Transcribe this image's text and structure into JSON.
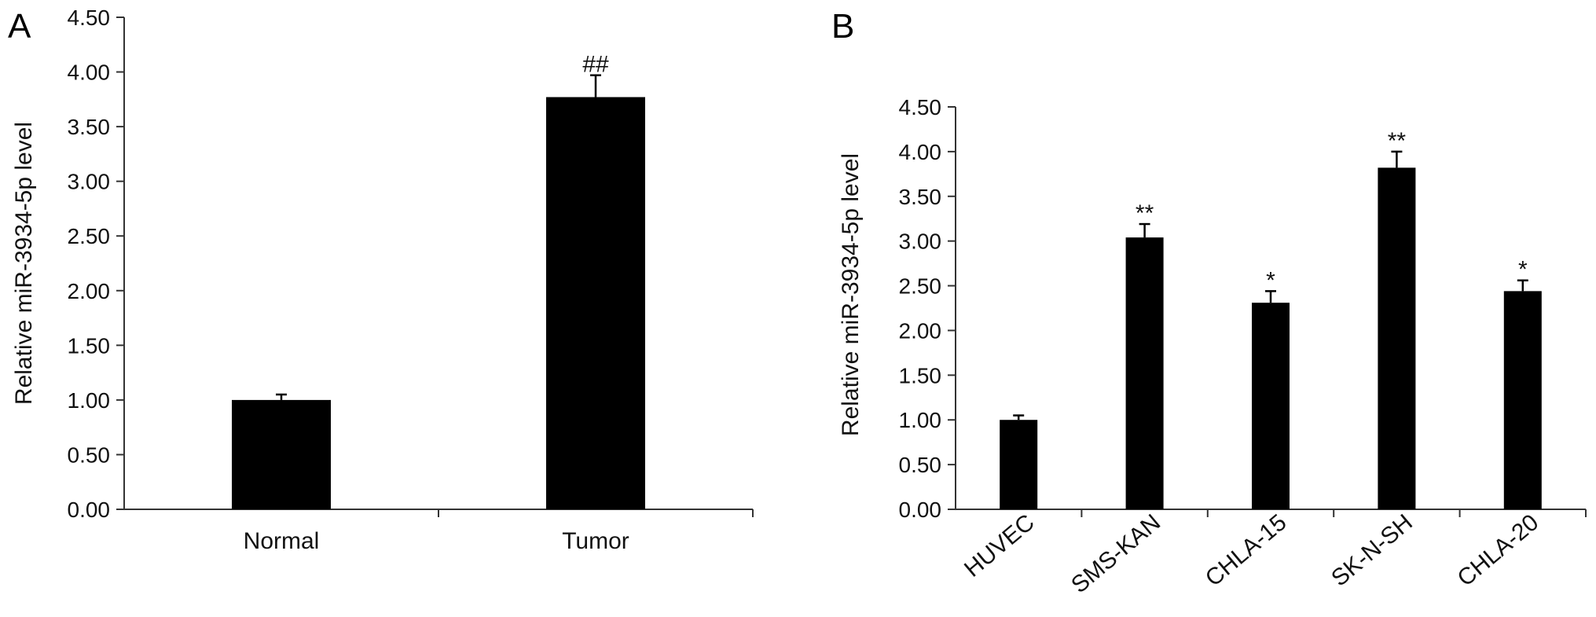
{
  "chart_data": [
    {
      "panel": "A",
      "type": "bar",
      "categories": [
        "Normal",
        "Tumor"
      ],
      "values": [
        1.0,
        3.77
      ],
      "errors": [
        0.05,
        0.2
      ],
      "annotations": [
        "",
        "##"
      ],
      "ylabel": "Relative miR-3934-5p level",
      "ylim": [
        0,
        4.5
      ],
      "yticks": [
        "0.00",
        "0.50",
        "1.00",
        "1.50",
        "2.00",
        "2.50",
        "3.00",
        "3.50",
        "4.00",
        "4.50"
      ],
      "bar_color": "#000000"
    },
    {
      "panel": "B",
      "type": "bar",
      "categories": [
        "HUVEC",
        "SMS-KAN",
        "CHLA-15",
        "SK-N-SH",
        "CHLA-20"
      ],
      "values": [
        1.0,
        3.04,
        2.31,
        3.82,
        2.44
      ],
      "errors": [
        0.05,
        0.15,
        0.13,
        0.18,
        0.12
      ],
      "annotations": [
        "",
        "**",
        "*",
        "**",
        "*"
      ],
      "ylabel": "Relative miR-3934-5p level",
      "ylim": [
        0,
        4.5
      ],
      "yticks": [
        "0.00",
        "0.50",
        "1.00",
        "1.50",
        "2.00",
        "2.50",
        "3.00",
        "3.50",
        "4.00",
        "4.50"
      ],
      "bar_color": "#000000"
    }
  ]
}
